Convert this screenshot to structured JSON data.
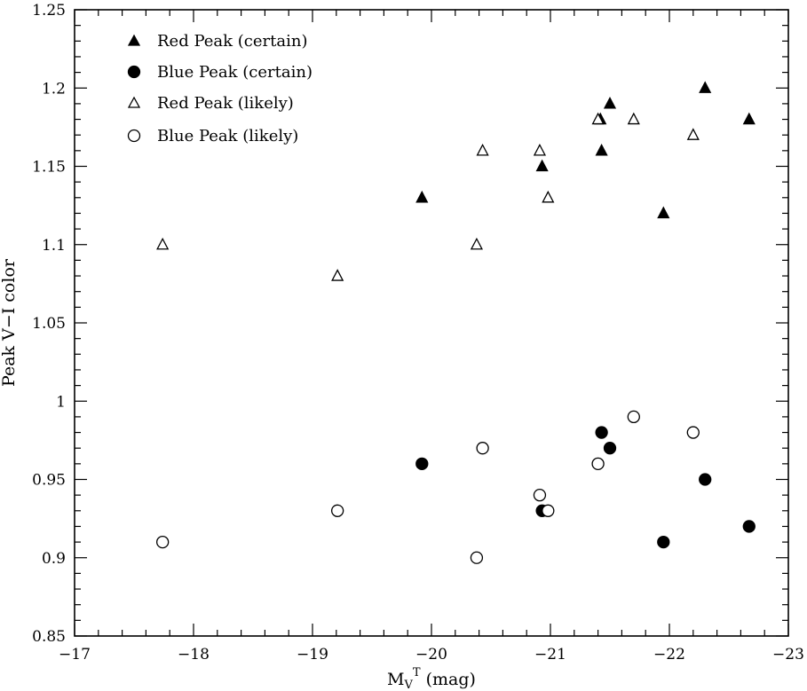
{
  "chart_data": {
    "type": "scatter",
    "xlabel": "M_V^T (mag)",
    "xlabel_main": "M",
    "xlabel_sub": "V",
    "xlabel_sup": "T",
    "xlabel_rest": " (mag)",
    "ylabel": "Peak V−I color",
    "xlim": [
      -17,
      -23
    ],
    "ylim": [
      0.85,
      1.25
    ],
    "x_ticks": [
      "−17",
      "−18",
      "−19",
      "−20",
      "−21",
      "−22",
      "−23"
    ],
    "y_ticks": [
      "0.85",
      "0.9",
      "0.95",
      "1",
      "1.05",
      "1.1",
      "1.15",
      "1.2",
      "1.25"
    ],
    "grid": false,
    "legend_position": "top-left",
    "series": [
      {
        "name": "Red Peak (certain)",
        "marker": "triangle-filled",
        "points": [
          {
            "x": -19.92,
            "y": 1.13
          },
          {
            "x": -20.93,
            "y": 1.15
          },
          {
            "x": -21.42,
            "y": 1.18
          },
          {
            "x": -21.43,
            "y": 1.16
          },
          {
            "x": -21.5,
            "y": 1.19
          },
          {
            "x": -21.95,
            "y": 1.12
          },
          {
            "x": -22.3,
            "y": 1.2
          },
          {
            "x": -22.67,
            "y": 1.18
          }
        ]
      },
      {
        "name": "Blue Peak (certain)",
        "marker": "circle-filled",
        "points": [
          {
            "x": -19.92,
            "y": 0.96
          },
          {
            "x": -20.93,
            "y": 0.93
          },
          {
            "x": -21.43,
            "y": 0.98
          },
          {
            "x": -21.5,
            "y": 0.97
          },
          {
            "x": -21.95,
            "y": 0.91
          },
          {
            "x": -22.3,
            "y": 0.95
          },
          {
            "x": -22.67,
            "y": 0.92
          }
        ]
      },
      {
        "name": "Red Peak (likely)",
        "marker": "triangle-open",
        "points": [
          {
            "x": -17.74,
            "y": 1.1
          },
          {
            "x": -19.21,
            "y": 1.08
          },
          {
            "x": -20.38,
            "y": 1.1
          },
          {
            "x": -20.43,
            "y": 1.16
          },
          {
            "x": -20.91,
            "y": 1.16
          },
          {
            "x": -20.98,
            "y": 1.13
          },
          {
            "x": -21.4,
            "y": 1.18
          },
          {
            "x": -21.7,
            "y": 1.18
          },
          {
            "x": -22.2,
            "y": 1.17
          }
        ]
      },
      {
        "name": "Blue Peak (likely)",
        "marker": "circle-open",
        "points": [
          {
            "x": -17.74,
            "y": 0.91
          },
          {
            "x": -19.21,
            "y": 0.93
          },
          {
            "x": -20.38,
            "y": 0.9
          },
          {
            "x": -20.43,
            "y": 0.97
          },
          {
            "x": -20.91,
            "y": 0.94
          },
          {
            "x": -20.98,
            "y": 0.93
          },
          {
            "x": -21.4,
            "y": 0.96
          },
          {
            "x": -21.7,
            "y": 0.99
          },
          {
            "x": -22.2,
            "y": 0.98
          }
        ]
      }
    ]
  }
}
